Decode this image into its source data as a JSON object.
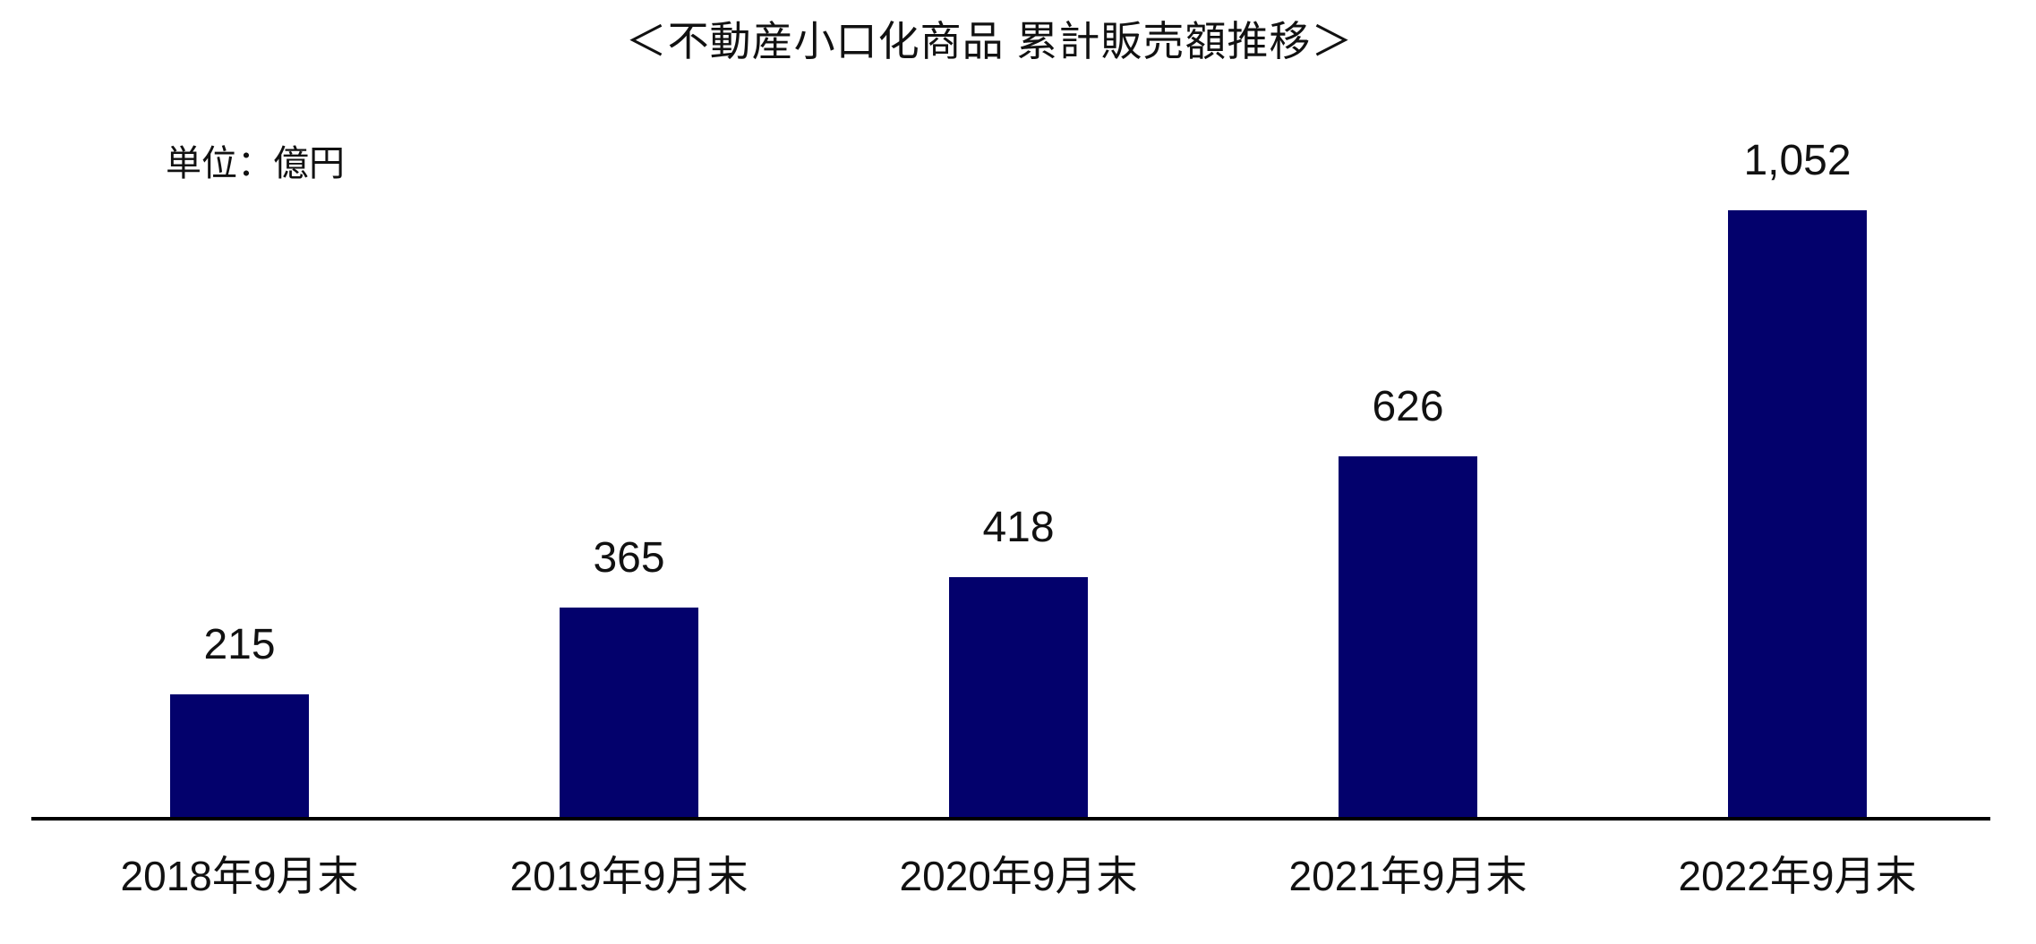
{
  "chart_data": {
    "type": "bar",
    "title": "＜不動産小口化商品 累計販売額推移＞",
    "unit_label": "単位：億円",
    "categories": [
      "2018年9月末",
      "2019年9月末",
      "2020年9月末",
      "2021年9月末",
      "2022年9月末"
    ],
    "values": [
      215,
      365,
      418,
      626,
      1052
    ],
    "value_labels": [
      "215",
      "365",
      "418",
      "626",
      "1,052"
    ],
    "ylabel": "億円",
    "ylim": [
      0,
      1100
    ],
    "bar_color": "#03016C",
    "axis_color": "#000000",
    "text_color": "#111111",
    "grid": false,
    "legend": "none",
    "y_axis_visible": false,
    "data_labels_position": "above bars"
  }
}
